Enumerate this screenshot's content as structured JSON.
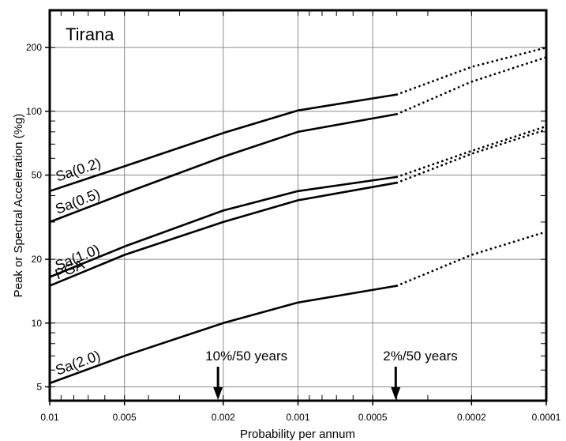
{
  "chart_data": {
    "type": "line",
    "title": "Tirana",
    "xlabel": "Probability  per annum",
    "ylabel": "Peak or Spectral Acceleration (%g)",
    "x_scale": "log",
    "x_reversed": true,
    "y_scale": "log",
    "xlim": [
      0.01,
      0.0001
    ],
    "ylim": [
      4.3,
      300
    ],
    "grid": true,
    "x_ticks": [
      0.01,
      0.005,
      0.002,
      0.001,
      0.0005,
      0.0002,
      0.0001
    ],
    "x_tick_labels": [
      "0.01",
      "0.005",
      "0.002",
      "0.001",
      "0.0005",
      "0.0002",
      "0.0001"
    ],
    "y_ticks": [
      5,
      10,
      20,
      50,
      100,
      200
    ],
    "y_tick_labels": [
      "5",
      "10",
      "20",
      "50",
      "100",
      "200"
    ],
    "series": [
      {
        "name": "Sa(0.2)",
        "solid": {
          "x": [
            0.01,
            0.005,
            0.002,
            0.001,
            0.0004
          ],
          "y": [
            42,
            55,
            79,
            101,
            120
          ]
        },
        "dotted": {
          "x": [
            0.0004,
            0.0002,
            0.0001
          ],
          "y": [
            120,
            162,
            200
          ]
        }
      },
      {
        "name": "Sa(0.5)",
        "solid": {
          "x": [
            0.01,
            0.005,
            0.002,
            0.001,
            0.0004
          ],
          "y": [
            30,
            41,
            61,
            80,
            97
          ]
        },
        "dotted": {
          "x": [
            0.0004,
            0.0002,
            0.0001
          ],
          "y": [
            97,
            138,
            180
          ]
        }
      },
      {
        "name": "Sa(1.0)",
        "solid": {
          "x": [
            0.01,
            0.005,
            0.002,
            0.001,
            0.0004
          ],
          "y": [
            16.5,
            23,
            34,
            42,
            49
          ]
        },
        "dotted": {
          "x": [
            0.0004,
            0.0002,
            0.0001
          ],
          "y": [
            49,
            65,
            85
          ]
        }
      },
      {
        "name": "PGA",
        "solid": {
          "x": [
            0.01,
            0.005,
            0.002,
            0.001,
            0.0004
          ],
          "y": [
            15,
            21,
            30,
            38,
            46
          ]
        },
        "dotted": {
          "x": [
            0.0004,
            0.0002,
            0.0001
          ],
          "y": [
            46,
            63,
            82
          ]
        }
      },
      {
        "name": "Sa(2.0)",
        "solid": {
          "x": [
            0.01,
            0.005,
            0.002,
            0.001,
            0.0004
          ],
          "y": [
            5.2,
            7,
            10,
            12.5,
            15
          ]
        },
        "dotted": {
          "x": [
            0.0004,
            0.0002,
            0.0001
          ],
          "y": [
            15,
            21,
            27
          ]
        }
      }
    ],
    "annotations": [
      {
        "text": "10%/50 years",
        "x": 0.0021
      },
      {
        "text": "2%/50 years",
        "x": 0.000404
      }
    ]
  }
}
